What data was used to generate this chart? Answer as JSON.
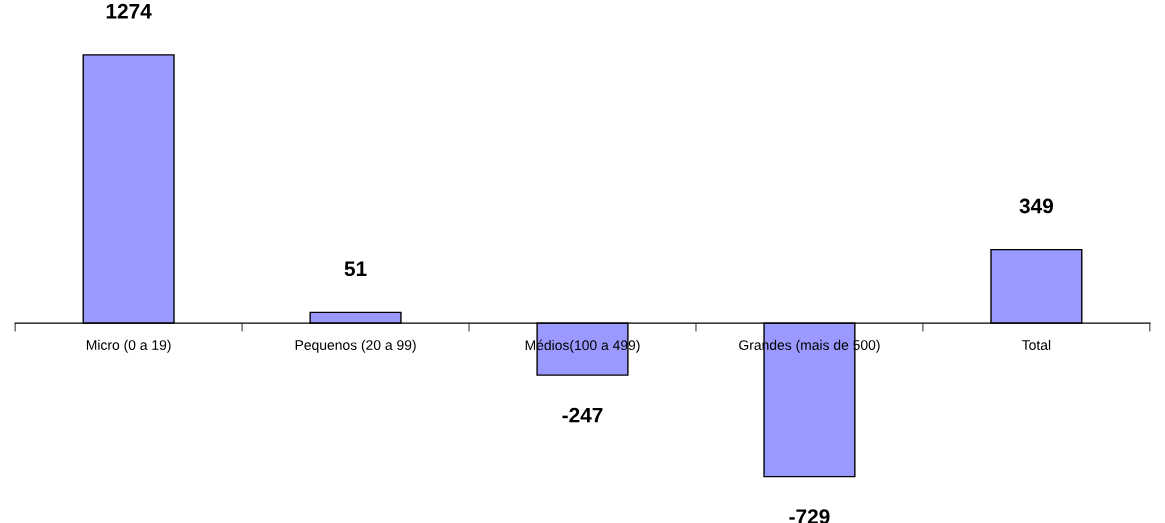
{
  "chart_data": {
    "type": "bar",
    "categories": [
      "Micro (0 a 19)",
      "Pequenos (20 a 99)",
      "Médios(100 a 499)",
      "Grandes (mais de 500)",
      "Total"
    ],
    "values": [
      1274,
      51,
      -247,
      -729,
      349
    ],
    "color": "#9999ff",
    "data_labels": true,
    "tick_labels": "x",
    "grid": false,
    "legend": false
  }
}
